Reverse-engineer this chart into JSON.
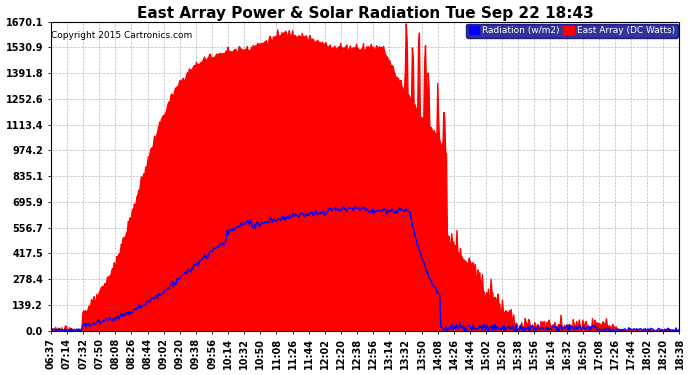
{
  "title": "East Array Power & Solar Radiation Tue Sep 22 18:43",
  "copyright": "Copyright 2015 Cartronics.com",
  "legend_radiation": "Radiation (w/m2)",
  "legend_east_array": "East Array (DC Watts)",
  "y_ticks": [
    0.0,
    139.2,
    278.4,
    417.5,
    556.7,
    695.9,
    835.1,
    974.2,
    1113.4,
    1252.6,
    1391.8,
    1530.9,
    1670.1
  ],
  "ylim": [
    0.0,
    1670.1
  ],
  "background_color": "#ffffff",
  "plot_bg_color": "#ffffff",
  "grid_color": "#bbbbbb",
  "radiation_color": "#0000ff",
  "east_array_color": "#ff0000",
  "title_fontsize": 11,
  "tick_fontsize": 7,
  "x_labels": [
    "06:37",
    "07:14",
    "07:32",
    "07:50",
    "08:08",
    "08:26",
    "08:44",
    "09:02",
    "09:20",
    "09:38",
    "09:56",
    "10:14",
    "10:32",
    "10:50",
    "11:08",
    "11:26",
    "11:44",
    "12:02",
    "12:20",
    "12:38",
    "12:56",
    "13:14",
    "13:32",
    "13:50",
    "14:08",
    "14:26",
    "14:44",
    "15:02",
    "15:20",
    "15:38",
    "15:56",
    "16:14",
    "16:32",
    "16:50",
    "17:08",
    "17:26",
    "17:44",
    "18:02",
    "18:20",
    "18:38"
  ]
}
